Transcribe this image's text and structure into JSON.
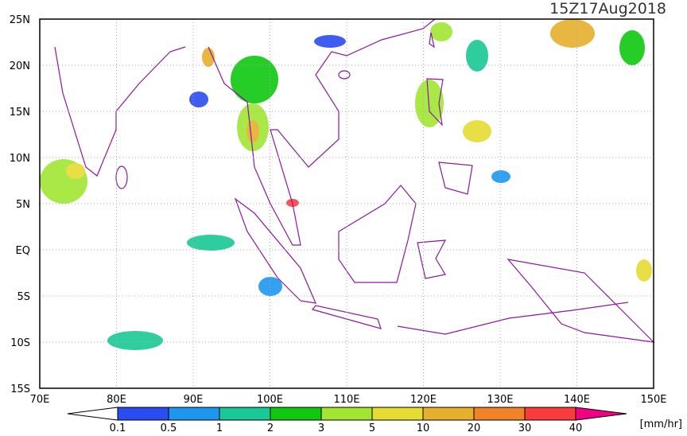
{
  "title": "15Z17Aug2018",
  "map": {
    "lon_labels": [
      "70E",
      "80E",
      "90E",
      "100E",
      "110E",
      "120E",
      "130E",
      "140E",
      "150E"
    ],
    "lat_labels": [
      "25N",
      "20N",
      "15N",
      "10N",
      "5N",
      "EQ",
      "5S",
      "10S",
      "15S"
    ]
  },
  "colorbar": {
    "labels": [
      "0.1",
      "0.5",
      "1",
      "2",
      "3",
      "5",
      "10",
      "20",
      "30",
      "40"
    ],
    "colors": [
      "#ffffff",
      "#2a4cf0",
      "#1e96f0",
      "#18c896",
      "#10c810",
      "#a0e632",
      "#e6dc32",
      "#e6af2d",
      "#f08228",
      "#fa3c3c",
      "#f00082"
    ],
    "unit": "[mm/hr]"
  }
}
